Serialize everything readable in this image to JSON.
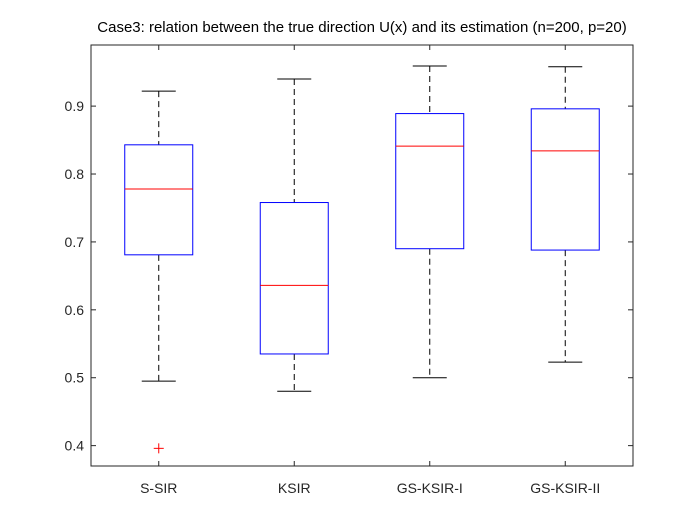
{
  "chart_data": {
    "type": "boxplot",
    "title": "Case3: relation between the true direction U(x) and its estimation (n=200, p=20)",
    "xlabel": "",
    "ylabel": "",
    "ylim": [
      0.37,
      0.99
    ],
    "yticks": [
      0.4,
      0.5,
      0.6,
      0.7,
      0.8,
      0.9
    ],
    "ytick_labels": [
      "0.4",
      "0.5",
      "0.6",
      "0.7",
      "0.8",
      "0.9"
    ],
    "grid": false,
    "categories": [
      "S-SIR",
      "KSIR",
      "GS-KSIR-I",
      "GS-KSIR-II"
    ],
    "boxes": [
      {
        "name": "S-SIR",
        "whisker_low": 0.495,
        "q1": 0.681,
        "median": 0.778,
        "q3": 0.843,
        "whisker_high": 0.922,
        "outliers": [
          0.396
        ]
      },
      {
        "name": "KSIR",
        "whisker_low": 0.48,
        "q1": 0.535,
        "median": 0.636,
        "q3": 0.758,
        "whisker_high": 0.94,
        "outliers": []
      },
      {
        "name": "GS-KSIR-I",
        "whisker_low": 0.5,
        "q1": 0.69,
        "median": 0.841,
        "q3": 0.889,
        "whisker_high": 0.959,
        "outliers": []
      },
      {
        "name": "GS-KSIR-II",
        "whisker_low": 0.523,
        "q1": 0.688,
        "median": 0.834,
        "q3": 0.896,
        "whisker_high": 0.958,
        "outliers": []
      }
    ],
    "colors": {
      "box": "#0000ff",
      "median": "#ff0000",
      "whisker": "#000000",
      "outlier": "#ff0000",
      "axes": "#262626"
    }
  }
}
